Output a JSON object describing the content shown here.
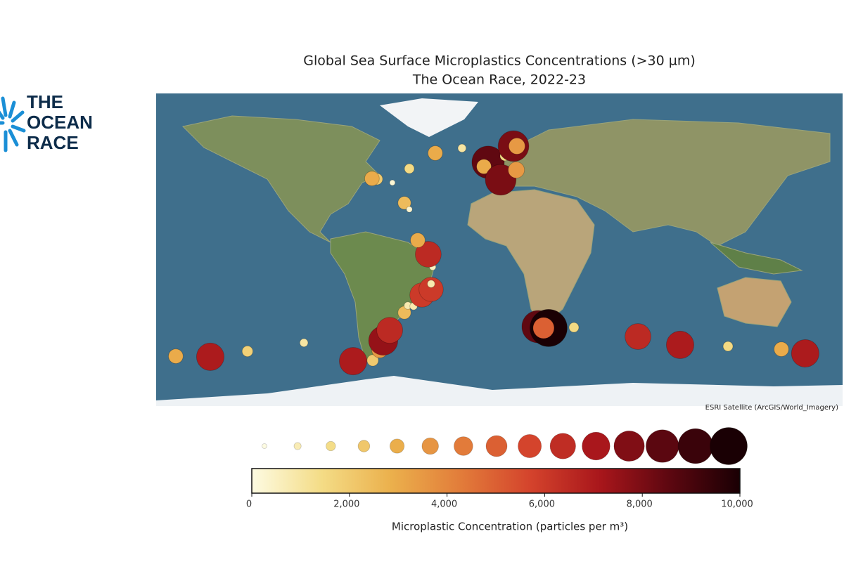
{
  "logo": {
    "lines": [
      "THE",
      "OCEAN",
      "RACE"
    ]
  },
  "chart_data": {
    "type": "scatter",
    "title": [
      "Global Sea Surface Microplastics Concentrations (>30 µm)",
      "The Ocean Race, 2022-23"
    ],
    "attribution": "ESRI Satellite (ArcGIS/World_Imagery)",
    "xlim": [
      -180,
      180
    ],
    "ylim": [
      -80,
      85
    ],
    "x": [
      -169.7,
      -151.6,
      -132.1,
      -102.5,
      -76.7,
      -66.4,
      -62.7,
      -60.9,
      -57.5,
      -49.8,
      -48.0,
      -45.0,
      -41.3,
      -40.6,
      -35.8,
      -35.8,
      -35.0,
      -37.3,
      -42.8,
      -49.8,
      -47.2,
      -56.1,
      -64.2,
      -66.8,
      -47.2,
      -33.6,
      -19.6,
      -5.9,
      -8.1,
      0.7,
      2.9,
      5.2,
      7.4,
      9.2,
      8.9,
      20.3,
      25.8,
      23.2,
      39.1,
      72.7,
      94.8,
      119.9,
      147.9,
      160.4
    ],
    "y": [
      -53.7,
      -54.0,
      -51.1,
      -46.6,
      -56.3,
      -55.9,
      -50.3,
      -45.5,
      -40.0,
      -30.7,
      -27.0,
      -27.3,
      -23.3,
      -21.4,
      -18.4,
      -15.5,
      -6.6,
      0.1,
      7.5,
      27.2,
      23.8,
      37.9,
      39.8,
      40.1,
      45.3,
      53.5,
      56.1,
      48.7,
      46.4,
      39.4,
      52.0,
      54.6,
      57.2,
      57.2,
      44.6,
      -38.1,
      -38.8,
      -38.8,
      -38.5,
      -43.3,
      -47.7,
      -48.5,
      -50.0,
      -52.2
    ],
    "values": [
      3000,
      7000,
      1800,
      1000,
      7000,
      2000,
      3500,
      7500,
      6500,
      2500,
      800,
      800,
      3000,
      6000,
      6000,
      800,
      500,
      6500,
      3000,
      2500,
      300,
      200,
      2000,
      3000,
      1500,
      3000,
      1000,
      8500,
      3000,
      8000,
      1500,
      1500,
      8000,
      3500,
      3500,
      8500,
      10000,
      5000,
      1500,
      6500,
      7000,
      1500,
      3000,
      7000
    ],
    "size_legend": [
      0,
      700,
      1400,
      2100,
      2900,
      3600,
      4300,
      5000,
      5700,
      6400,
      7100,
      7900,
      8600,
      9300,
      10000
    ],
    "colorscale": [
      "#fdfbe2",
      "#f4dc86",
      "#ebb04c",
      "#e27c3a",
      "#d4432c",
      "#a8161b",
      "#5c0710",
      "#1a0004"
    ],
    "clim": [
      0,
      10000
    ],
    "cticks": [
      0,
      {
        "value": 2000,
        "label": "2,000"
      },
      {
        "value": 4000,
        "label": "4,000"
      },
      {
        "value": 6000,
        "label": "6,000"
      },
      {
        "value": 8000,
        "label": "8,000"
      },
      {
        "value": 10000,
        "label": "10,000"
      }
    ],
    "colorbar_label": "Microplastic Concentration (particles per m³)"
  }
}
